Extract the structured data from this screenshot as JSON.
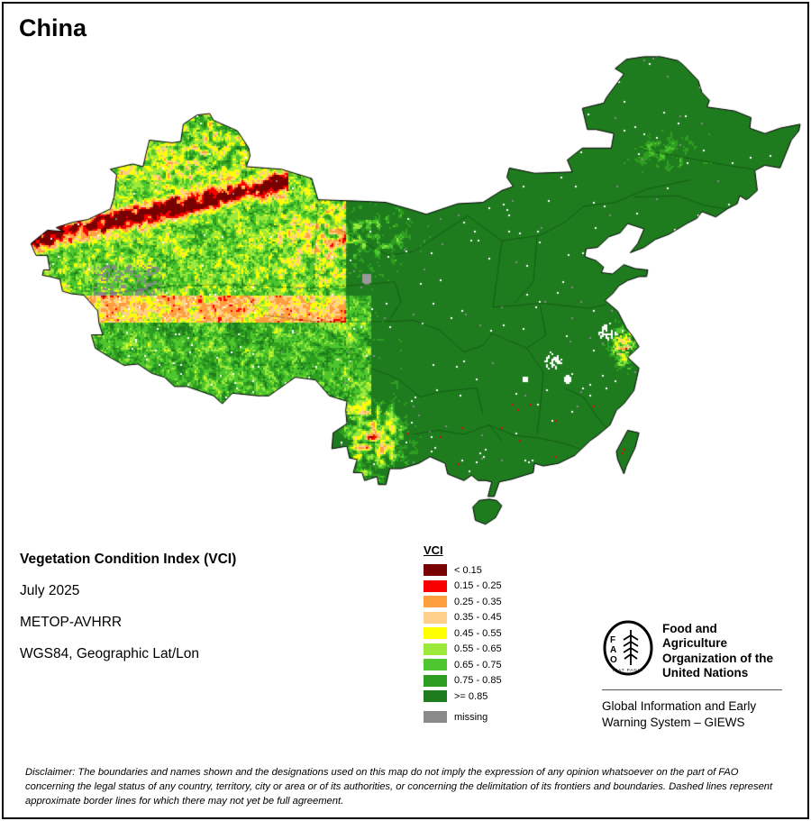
{
  "title": "China",
  "info": {
    "heading": "Vegetation Condition Index (VCI)",
    "date": "July 2025",
    "sensor": "METOP-AVHRR",
    "projection": "WGS84, Geographic Lat/Lon"
  },
  "legend": {
    "title": "VCI",
    "items": [
      {
        "label": "< 0.15",
        "color": "#780000"
      },
      {
        "label": "0.15 - 0.25",
        "color": "#F80000"
      },
      {
        "label": "0.25 - 0.35",
        "color": "#FF9E3C"
      },
      {
        "label": "0.35 - 0.45",
        "color": "#FFD08C"
      },
      {
        "label": "0.45 - 0.55",
        "color": "#FFFF00"
      },
      {
        "label": "0.55 - 0.65",
        "color": "#9CE93B"
      },
      {
        "label": "0.65 - 0.75",
        "color": "#4DC72D"
      },
      {
        "label": "0.75 - 0.85",
        "color": "#2E9E21"
      },
      {
        "label": ">= 0.85",
        "color": "#1E7C1E"
      },
      {
        "label": "missing",
        "color": "#8A8A8A"
      }
    ]
  },
  "footer": {
    "fao_name": "Food and Agriculture Organization of the United Nations",
    "giews": "Global Information and Early Warning System – GIEWS",
    "logo_letters": [
      "F",
      "A",
      "O"
    ],
    "logo_motto": "FIAT PANIS"
  },
  "disclaimer": "Disclaimer: The boundaries and names shown and the designations used on this map do not imply the expression of any opinion whatsoever on the part of FAO concerning the legal status of any country, territory, city or area or of its authorities, or concerning the delimitation of its frontiers and boundaries. Dashed lines represent approximate border lines for which there may not yet be full agreement."
}
